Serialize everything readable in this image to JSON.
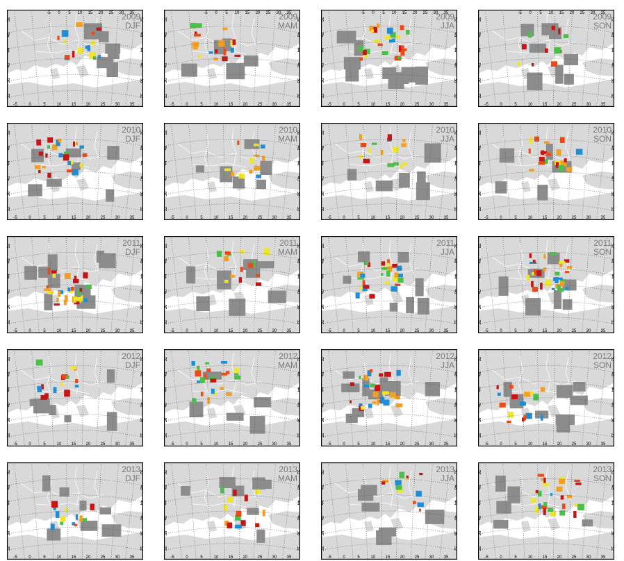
{
  "grid": {
    "lon_ticks": [
      "-5",
      "0",
      "5",
      "10",
      "15",
      "20",
      "25",
      "30",
      "35"
    ],
    "lat_ticks": [
      "32",
      "36",
      "40",
      "44",
      "48",
      "52"
    ]
  },
  "panels": [
    {
      "id": "2009-djf",
      "year": "2009",
      "season": "DJF"
    },
    {
      "id": "2009-mam",
      "year": "2009",
      "season": "MAM"
    },
    {
      "id": "2009-jja",
      "year": "2009",
      "season": "JJA"
    },
    {
      "id": "2009-son",
      "year": "2009",
      "season": "SON"
    },
    {
      "id": "2010-djf",
      "year": "2010",
      "season": "DJF"
    },
    {
      "id": "2010-mam",
      "year": "2010",
      "season": "MAM"
    },
    {
      "id": "2010-jja",
      "year": "2010",
      "season": "JJA"
    },
    {
      "id": "2010-son",
      "year": "2010",
      "season": "SON"
    },
    {
      "id": "2011-djf",
      "year": "2011",
      "season": "DJF"
    },
    {
      "id": "2011-mam",
      "year": "2011",
      "season": "MAM"
    },
    {
      "id": "2011-jja",
      "year": "2011",
      "season": "JJA"
    },
    {
      "id": "2011-son",
      "year": "2011",
      "season": "SON"
    },
    {
      "id": "2012-djf",
      "year": "2012",
      "season": "DJF"
    },
    {
      "id": "2012-mam",
      "year": "2012",
      "season": "MAM"
    },
    {
      "id": "2012-jja",
      "year": "2012",
      "season": "JJA"
    },
    {
      "id": "2012-son",
      "year": "2012",
      "season": "SON"
    },
    {
      "id": "2013-djf",
      "year": "2013",
      "season": "DJF"
    },
    {
      "id": "2013-mam",
      "year": "2013",
      "season": "MAM"
    },
    {
      "id": "2013-jja",
      "year": "2013",
      "season": "JJA"
    },
    {
      "id": "2013-son",
      "year": "2013",
      "season": "SON"
    }
  ],
  "colors": {
    "land": "#d9d9d9",
    "sea": "#ffffff",
    "coverage": "#8c8c8c",
    "borders": "#ffffff",
    "graticule": "#555555",
    "frame": "#000000",
    "palette": [
      "#c81414",
      "#f04a14",
      "#f5a01e",
      "#f0e628",
      "#4cbf4a",
      "#1e8fd6",
      "#2a5fb8",
      "#6a2a9a"
    ]
  }
}
